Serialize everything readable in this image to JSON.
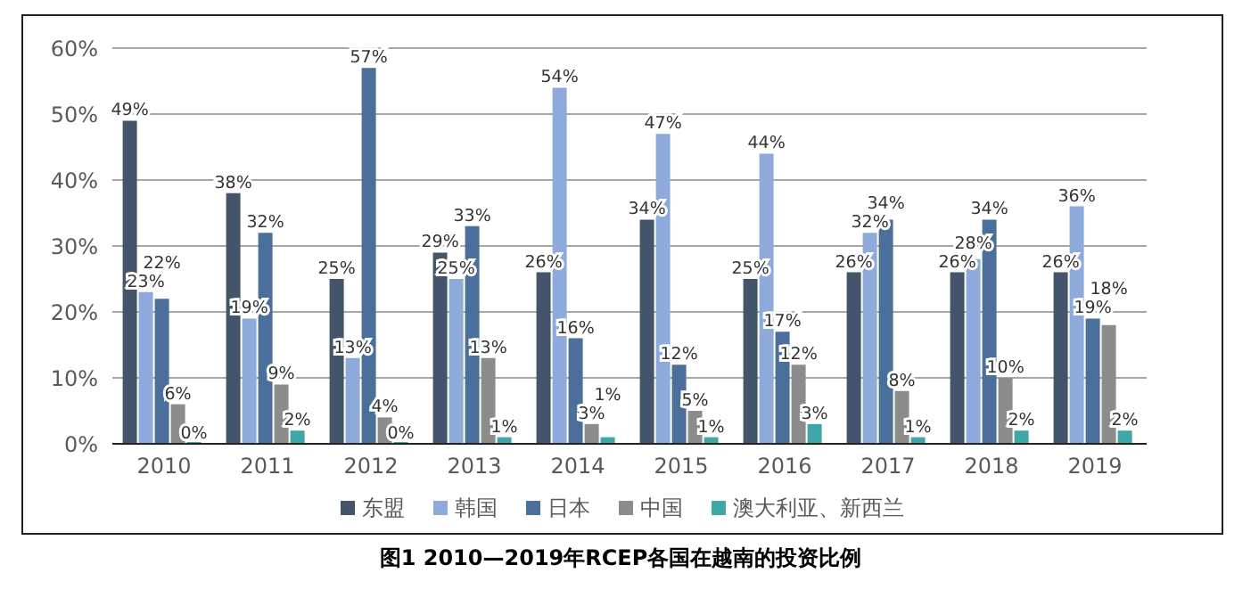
{
  "chart_data": {
    "type": "bar",
    "title": "图1  2010—2019年RCEP各国在越南的投资比例",
    "categories": [
      "2010",
      "2011",
      "2012",
      "2013",
      "2014",
      "2015",
      "2016",
      "2017",
      "2018",
      "2019"
    ],
    "series": [
      {
        "name": "东盟",
        "color": "#44546a",
        "values": [
          49,
          38,
          25,
          29,
          26,
          34,
          25,
          26,
          26,
          26
        ],
        "value_labels": [
          "49%",
          "38%",
          "25%",
          "29%",
          "26%",
          "34%",
          "25%",
          "26%",
          "26%",
          "26%"
        ]
      },
      {
        "name": "韩国",
        "color": "#8eaadb",
        "values": [
          23,
          19,
          13,
          25,
          54,
          47,
          44,
          32,
          28,
          36
        ],
        "value_labels": [
          "23%",
          "19%",
          "13%",
          "25%",
          "54%",
          "47%",
          "44%",
          "32%",
          "28%",
          "36%"
        ]
      },
      {
        "name": "日本",
        "color": "#4a6f9a",
        "values": [
          22,
          32,
          57,
          33,
          16,
          12,
          17,
          34,
          34,
          19
        ],
        "value_labels": [
          "22%",
          "32%",
          "57%",
          "33%",
          "16%",
          "12%",
          "17%",
          "34%",
          "34%",
          "19%"
        ]
      },
      {
        "name": "中国",
        "color": "#8c8c8c",
        "values": [
          6,
          9,
          4,
          13,
          3,
          5,
          12,
          8,
          10,
          18
        ],
        "value_labels": [
          "6%",
          "9%",
          "4%",
          "13%",
          "3%",
          "5%",
          "12%",
          "8%",
          "10%",
          "18%"
        ]
      },
      {
        "name": "澳大利亚、新西兰",
        "color": "#3fa7a7",
        "values": [
          0,
          2,
          0,
          1,
          1,
          1,
          3,
          1,
          2,
          2
        ],
        "value_labels": [
          "0%",
          "2%",
          "0%",
          "1%",
          "1%",
          "1%",
          "3%",
          "1%",
          "2%",
          "2%"
        ]
      }
    ],
    "ylim": [
      0,
      60
    ],
    "yticks": [
      {
        "value": 0,
        "label": "0%"
      },
      {
        "value": 10,
        "label": "10%"
      },
      {
        "value": 20,
        "label": "20%"
      },
      {
        "value": 30,
        "label": "30%"
      },
      {
        "value": 40,
        "label": "40%"
      },
      {
        "value": 50,
        "label": "50%"
      },
      {
        "value": 60,
        "label": "60%"
      }
    ],
    "grid": "y",
    "legend": "bottom"
  }
}
